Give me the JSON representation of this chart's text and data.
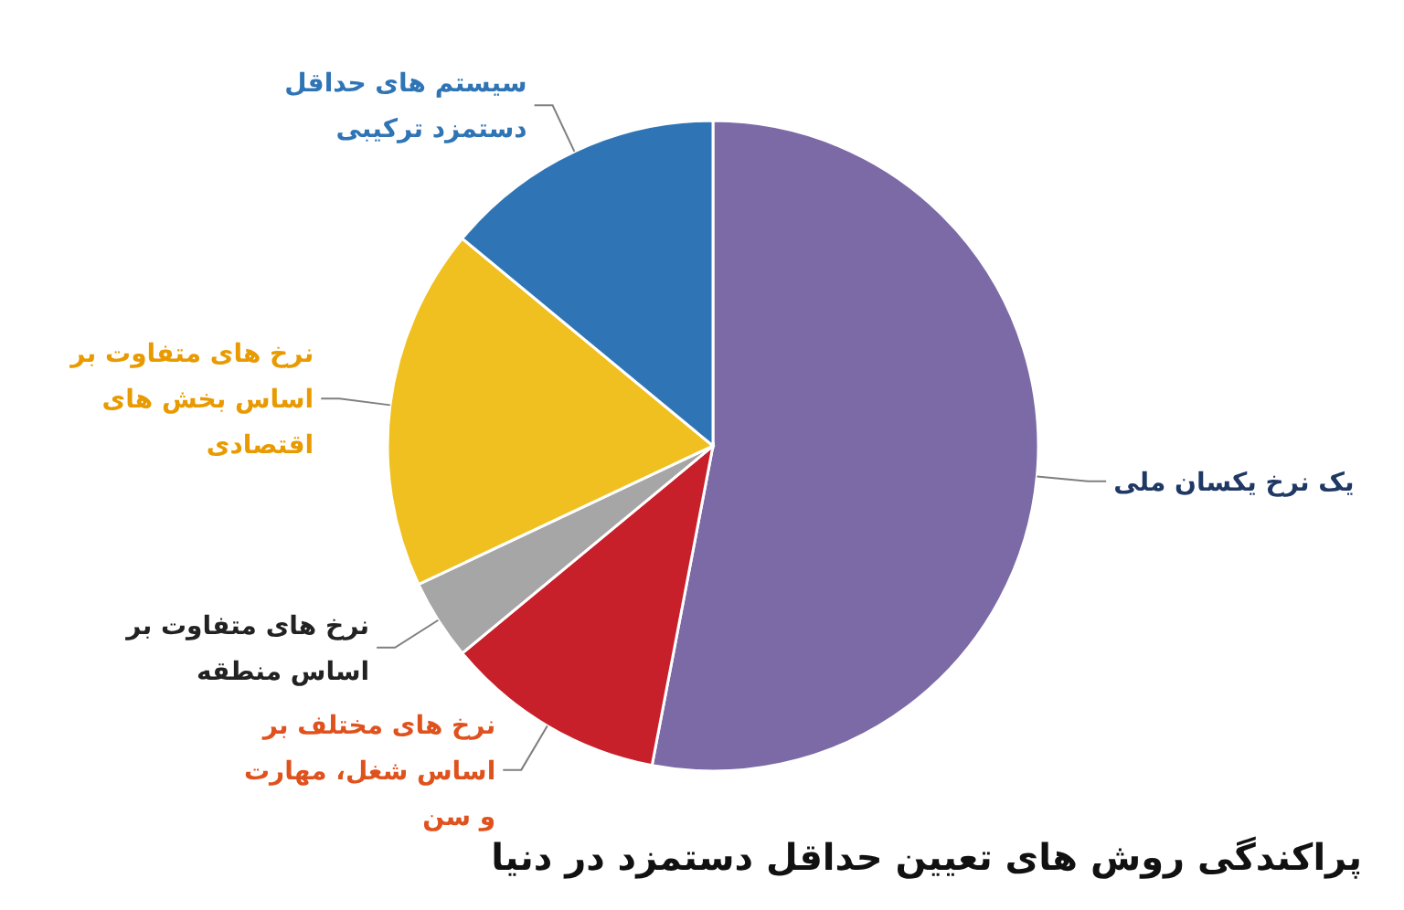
{
  "chart_data": {
    "type": "pie",
    "title": "پراکندگی روش های تعیین حداقل دستمزد در دنیا",
    "categories": [
      "یک نرخ یکسان ملی",
      "نرخ های مختلف بر اساس شغل، مهارت و سن",
      "نرخ های متفاوت بر اساس منطقه",
      "نرخ های متفاوت بر اساس بخش های اقتصادی",
      "سیستم های حداقل دستمزد ترکیبی"
    ],
    "values": [
      53,
      11,
      4,
      18,
      14
    ],
    "colors": [
      "#7b6aa6",
      "#c8202a",
      "#a6a6a6",
      "#f0c020",
      "#2f75b5"
    ]
  }
}
